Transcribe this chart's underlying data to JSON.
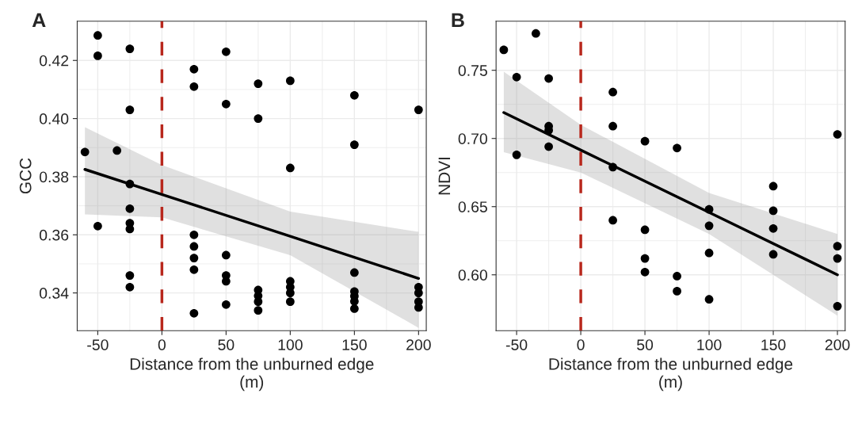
{
  "chart_data": [
    {
      "type": "scatter",
      "title": "A",
      "xlabel": "Distance from the unburned edge\n(m)",
      "ylabel": "GCC",
      "xlim": [
        -66,
        206
      ],
      "ylim": [
        0.327,
        0.4335
      ],
      "xticks": [
        {
          "value": -50,
          "label": "-50"
        },
        0,
        50,
        100,
        150,
        200
      ],
      "yticks": [
        {
          "value": 0.34,
          "label": "0.34"
        },
        {
          "value": 0.36,
          "label": "0.36"
        },
        {
          "value": 0.38,
          "label": "0.38"
        },
        {
          "value": 0.4,
          "label": "0.40"
        },
        {
          "value": 0.42,
          "label": "0.42"
        }
      ],
      "grid": true,
      "legend": false,
      "series": [
        {
          "marker": "circle",
          "color": "#000000",
          "x": [
            -60,
            -50,
            -50,
            -50,
            -35,
            -25,
            -25,
            -25,
            -25,
            -25,
            -25,
            -25,
            -25,
            25,
            25,
            25,
            25,
            25,
            25,
            25,
            50,
            50,
            50,
            50,
            50,
            50,
            75,
            75,
            75,
            75,
            75,
            75,
            100,
            100,
            100,
            100,
            100,
            100,
            150,
            150,
            150,
            150,
            150,
            150,
            150,
            200,
            200,
            200,
            200,
            200
          ],
          "values": [
            0.3885,
            0.4286,
            0.4216,
            0.363,
            0.389,
            0.424,
            0.403,
            0.3775,
            0.369,
            0.364,
            0.362,
            0.346,
            0.342,
            0.417,
            0.411,
            0.36,
            0.356,
            0.352,
            0.348,
            0.333,
            0.423,
            0.405,
            0.353,
            0.346,
            0.344,
            0.336,
            0.412,
            0.4,
            0.341,
            0.339,
            0.337,
            0.334,
            0.413,
            0.383,
            0.344,
            0.342,
            0.34,
            0.337,
            0.408,
            0.391,
            0.347,
            0.3405,
            0.3389,
            0.3371,
            0.3346,
            0.403,
            0.342,
            0.34,
            0.337,
            0.335
          ]
        },
        {
          "type": "line",
          "color": "#000000",
          "line_style": "solid",
          "x": [
            -60,
            0,
            100,
            200
          ],
          "values": [
            0.3825,
            0.3739,
            0.3595,
            0.345
          ],
          "lower": [
            0.367,
            0.366,
            0.353,
            0.328
          ],
          "upper": [
            0.397,
            0.384,
            0.368,
            0.361
          ]
        }
      ],
      "ref_lines": [
        {
          "axis": "x",
          "value": 0,
          "color": "#b8271c",
          "line_style": "dashed"
        }
      ]
    },
    {
      "type": "scatter",
      "title": "B",
      "xlabel": "Distance from the unburned edge\n(m)",
      "ylabel": "NDVI",
      "xlim": [
        -66,
        206
      ],
      "ylim": [
        0.559,
        0.786
      ],
      "xticks": [
        {
          "value": -50,
          "label": "-50"
        },
        0,
        50,
        100,
        150,
        200
      ],
      "yticks": [
        {
          "value": 0.6,
          "label": "0.60"
        },
        {
          "value": 0.65,
          "label": "0.65"
        },
        {
          "value": 0.7,
          "label": "0.70"
        },
        {
          "value": 0.75,
          "label": "0.75"
        }
      ],
      "grid": true,
      "legend": false,
      "series": [
        {
          "marker": "circle",
          "color": "#000000",
          "x": [
            -60,
            -50,
            -50,
            -35,
            -25,
            -25,
            -25,
            -25,
            25,
            25,
            25,
            25,
            50,
            50,
            50,
            50,
            75,
            75,
            75,
            100,
            100,
            100,
            100,
            150,
            150,
            150,
            150,
            200,
            200,
            200,
            200
          ],
          "values": [
            0.765,
            0.745,
            0.688,
            0.777,
            0.744,
            0.709,
            0.706,
            0.694,
            0.734,
            0.709,
            0.679,
            0.64,
            0.698,
            0.633,
            0.612,
            0.602,
            0.693,
            0.599,
            0.588,
            0.648,
            0.636,
            0.616,
            0.582,
            0.665,
            0.647,
            0.634,
            0.615,
            0.703,
            0.621,
            0.612,
            0.577
          ]
        },
        {
          "type": "line",
          "color": "#000000",
          "line_style": "solid",
          "x": [
            -60,
            0,
            100,
            200
          ],
          "values": [
            0.719,
            0.6915,
            0.6458,
            0.6
          ],
          "lower": [
            0.69,
            0.675,
            0.63,
            0.57
          ],
          "upper": [
            0.749,
            0.71,
            0.66,
            0.63
          ]
        }
      ],
      "ref_lines": [
        {
          "axis": "x",
          "value": 0,
          "color": "#b8271c",
          "line_style": "dashed"
        }
      ]
    }
  ]
}
